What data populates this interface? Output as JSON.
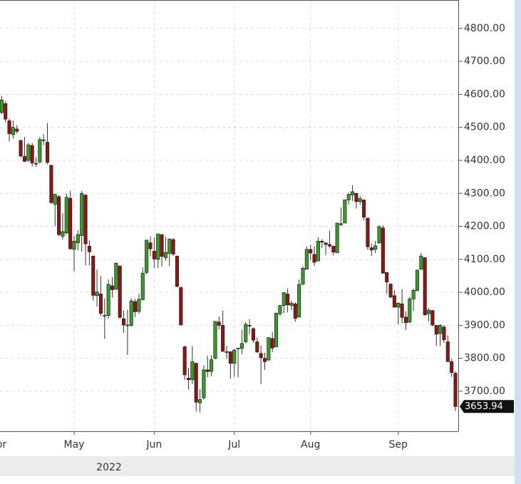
{
  "chart_data": {
    "type": "candlestick",
    "categories": [
      "Apr",
      null,
      null,
      null,
      null,
      null,
      null,
      null,
      null,
      null,
      null,
      null,
      null,
      null,
      null,
      null,
      null,
      null,
      null,
      null,
      "May",
      null,
      null,
      null,
      null,
      null,
      null,
      null,
      null,
      null,
      null,
      null,
      null,
      null,
      null,
      null,
      null,
      null,
      null,
      null,
      null,
      "Jun",
      null,
      null,
      null,
      null,
      null,
      null,
      null,
      null,
      null,
      null,
      null,
      null,
      null,
      null,
      null,
      null,
      null,
      null,
      null,
      null,
      "Jul",
      null,
      null,
      null,
      null,
      null,
      null,
      null,
      null,
      null,
      null,
      null,
      null,
      null,
      null,
      null,
      null,
      null,
      null,
      null,
      "Aug",
      null,
      null,
      null,
      null,
      null,
      null,
      null,
      null,
      null,
      null,
      null,
      null,
      null,
      null,
      null,
      null,
      null,
      null,
      null,
      null,
      null,
      null,
      "Sep",
      null,
      null,
      null,
      null,
      null,
      null,
      null,
      null,
      null,
      null,
      null,
      null,
      null,
      null,
      null
    ],
    "x_sublabel": "2022",
    "open": [
      4540,
      4545,
      4572,
      4520,
      4478,
      4495,
      4460,
      4412,
      4400,
      4445,
      4390,
      4395,
      4462,
      4455,
      4385,
      4267,
      4290,
      4170,
      4180,
      4285,
      4130,
      4150,
      4172,
      4295,
      4140,
      4110,
      3990,
      3995,
      3930,
      3930,
      4020,
      4010,
      4080,
      3920,
      3900,
      3900,
      3972,
      3942,
      3978,
      4060,
      4150,
      4125,
      4100,
      4175,
      4105,
      4118,
      4160,
      4110,
      4015,
      3835,
      3740,
      3735,
      3785,
      3665,
      3680,
      3765,
      3760,
      3800,
      3910,
      3900,
      3820,
      3820,
      3785,
      3830,
      3830,
      3850,
      3900,
      3890,
      3850,
      3815,
      3800,
      3795,
      3860,
      3835,
      3935,
      3960,
      3995,
      3960,
      3965,
      3925,
      4025,
      4070,
      4130,
      4115,
      4095,
      4155,
      4150,
      4145,
      4140,
      4120,
      4205,
      4210,
      4280,
      4295,
      4300,
      4275,
      4280,
      4225,
      4135,
      4130,
      4150,
      4195,
      4060,
      4025,
      3990,
      3955,
      3965,
      3925,
      3910,
      3980,
      4005,
      4070,
      4105,
      3935,
      3945,
      3900,
      3875,
      3895,
      3850,
      3790,
      3755
    ],
    "high": [
      4565,
      4595,
      4580,
      4527,
      4521,
      4507,
      4463,
      4471,
      4453,
      4453,
      4410,
      4471,
      4479,
      4513,
      4386,
      4299,
      4295,
      4240,
      4300,
      4308,
      4170,
      4188,
      4307,
      4296,
      4157,
      4111,
      4069,
      4049,
      3981,
      4039,
      4046,
      4091,
      4081,
      3945,
      3947,
      3981,
      3980,
      3995,
      4075,
      4160,
      4169,
      4166,
      4178,
      4176,
      4169,
      4164,
      4165,
      4111,
      4016,
      3838,
      3771,
      3837,
      3786,
      3707,
      3779,
      3808,
      3809,
      3913,
      3927,
      3945,
      3838,
      3821,
      3829,
      3832,
      3887,
      3910,
      3919,
      3894,
      3863,
      3839,
      3817,
      3863,
      3880,
      3938,
      3962,
      4001,
      4012,
      3975,
      3970,
      4039,
      4079,
      4140,
      4144,
      4140,
      4167,
      4161,
      4151,
      4187,
      4141,
      4211,
      4257,
      4281,
      4301,
      4325,
      4302,
      4292,
      4281,
      4226,
      4148,
      4156,
      4203,
      4203,
      4062,
      4027,
      4006,
      3970,
      4010,
      3943,
      3987,
      4011,
      4069,
      4119,
      4106,
      3953,
      3945,
      3901,
      3904,
      3901,
      3870,
      3798,
      3760
    ],
    "low": [
      4520,
      4540,
      4515,
      4457,
      4466,
      4481,
      4408,
      4395,
      4395,
      4381,
      4380,
      4390,
      4446,
      4388,
      4268,
      4200,
      4170,
      4160,
      4175,
      4129,
      4063,
      4127,
      4123,
      4082,
      4082,
      3975,
      3957,
      3929,
      3859,
      3920,
      3984,
      4006,
      3920,
      3877,
      3810,
      3895,
      3925,
      3935,
      3975,
      4055,
      4109,
      4073,
      4074,
      4079,
      4096,
      4080,
      4110,
      4015,
      3900,
      3735,
      3705,
      3722,
      3639,
      3636,
      3675,
      3743,
      3745,
      3797,
      3887,
      3820,
      3799,
      3738,
      3744,
      3742,
      3813,
      3846,
      3873,
      3847,
      3817,
      3722,
      3765,
      3792,
      3819,
      3834,
      3928,
      3937,
      3939,
      3946,
      3911,
      3925,
      4022,
      4079,
      4097,
      4080,
      4095,
      4135,
      4113,
      4133,
      4112,
      4120,
      4201,
      4211,
      4266,
      4277,
      4254,
      4265,
      4218,
      4129,
      4110,
      4119,
      4146,
      4057,
      3995,
      3981,
      3954,
      3903,
      3906,
      3886,
      3906,
      3944,
      4004,
      4068,
      3929,
      3912,
      3896,
      3838,
      3838,
      3847,
      3790,
      3744,
      3640
    ],
    "close": [
      4546,
      4583,
      4525,
      4481,
      4500,
      4488,
      4413,
      4397,
      4447,
      4392,
      4391,
      4463,
      4460,
      4394,
      4272,
      4297,
      4175,
      4184,
      4288,
      4132,
      4155,
      4175,
      4300,
      4147,
      4123,
      3991,
      4001,
      3936,
      3930,
      4024,
      4008,
      4088,
      3924,
      3901,
      3901,
      3974,
      3941,
      3979,
      4058,
      4158,
      4132,
      4101,
      4177,
      4109,
      4121,
      4161,
      4116,
      4018,
      3901,
      3750,
      3735,
      3790,
      3667,
      3675,
      3765,
      3760,
      3796,
      3912,
      3900,
      3821,
      3819,
      3785,
      3825,
      3831,
      3845,
      3903,
      3899,
      3855,
      3819,
      3802,
      3790,
      3863,
      3831,
      3937,
      3960,
      3999,
      3962,
      3967,
      3921,
      4024,
      4073,
      4130,
      4119,
      4091,
      4155,
      4152,
      4145,
      4140,
      4122,
      4210,
      4208,
      4280,
      4297,
      4305,
      4275,
      4284,
      4228,
      4138,
      4128,
      4141,
      4199,
      4058,
      4031,
      3986,
      3955,
      3967,
      3924,
      3908,
      3980,
      4006,
      4067,
      4110,
      3932,
      3946,
      3901,
      3873,
      3900,
      3856,
      3790,
      3757,
      3653.94
    ],
    "up_color": "#3a9a2c",
    "down_color": "#8a1616",
    "ylim": [
      3579,
      4886
    ],
    "yticks": [
      {
        "value": 3700,
        "label": "3700.00"
      },
      {
        "value": 3800,
        "label": "3800.00"
      },
      {
        "value": 3900,
        "label": "3900.00"
      },
      {
        "value": 4000,
        "label": "4000.00"
      },
      {
        "value": 4100,
        "label": "4100.00"
      },
      {
        "value": 4200,
        "label": "4200.00"
      },
      {
        "value": 4300,
        "label": "4300.00"
      },
      {
        "value": 4400,
        "label": "4400.00"
      },
      {
        "value": 4500,
        "label": "4500.00"
      },
      {
        "value": 4600,
        "label": "4600.00"
      },
      {
        "value": 4700,
        "label": "4700.00"
      },
      {
        "value": 4800,
        "label": "4800.00"
      }
    ],
    "grid": true
  }
}
